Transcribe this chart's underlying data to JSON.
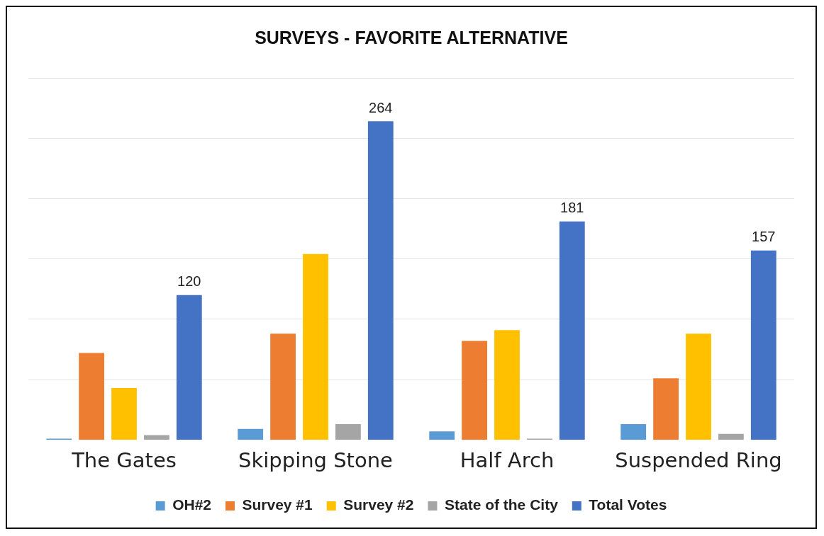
{
  "chart_data": {
    "type": "bar",
    "title": "SURVEYS - FAVORITE ALTERNATIVE",
    "categories": [
      "The Gates",
      "Skipping Stone",
      "Half Arch",
      "Suspended Ring"
    ],
    "series": [
      {
        "name": "OH#2",
        "color": "#5b9bd5",
        "values": [
          1,
          9,
          7,
          13
        ]
      },
      {
        "name": "Survey #1",
        "color": "#ed7d31",
        "values": [
          72,
          88,
          82,
          51
        ]
      },
      {
        "name": "Survey #2",
        "color": "#ffc000",
        "values": [
          43,
          154,
          91,
          88
        ]
      },
      {
        "name": "State of the City",
        "color": "#a5a5a5",
        "values": [
          4,
          13,
          1,
          5
        ]
      },
      {
        "name": "Total Votes",
        "color": "#4472c4",
        "values": [
          120,
          264,
          181,
          157
        ],
        "value_labels": [
          "120",
          "264",
          "181",
          "157"
        ]
      }
    ],
    "ylim": [
      0,
      300
    ],
    "yticks": [
      {
        "value": 50,
        "label": null
      },
      {
        "value": 100,
        "label": null
      },
      {
        "value": 150,
        "label": null
      },
      {
        "value": 200,
        "label": null
      },
      {
        "value": 250,
        "label": null
      },
      {
        "value": 300,
        "label": null
      }
    ],
    "grid": "y",
    "tick_labels": "x",
    "legend": "bottom"
  }
}
